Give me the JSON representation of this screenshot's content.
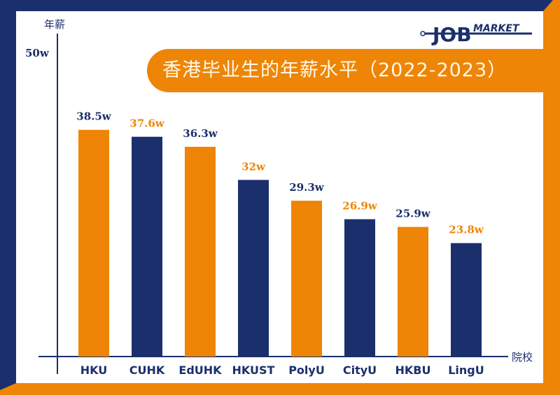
{
  "chart_data": {
    "type": "bar",
    "title": "香港毕业生的年薪水平（2022-2023）",
    "ylabel": "年薪",
    "xlabel": "院校",
    "y_tick_labels": [
      "50w"
    ],
    "categories": [
      "HKU",
      "CUHK",
      "EdUHK",
      "HKUST",
      "PolyU",
      "CityU",
      "HKBU",
      "LingU"
    ],
    "values": [
      38.5,
      37.6,
      36.3,
      32,
      29.3,
      26.9,
      25.9,
      23.8
    ],
    "data_labels": [
      "38.5w",
      "37.6w",
      "36.3w",
      "32w",
      "29.3w",
      "26.9w",
      "25.9w",
      "23.8w"
    ],
    "bar_colors": [
      "#ee8506",
      "#1b2f6c",
      "#ee8506",
      "#1b2f6c",
      "#ee8506",
      "#1b2f6c",
      "#ee8506",
      "#1b2f6c"
    ],
    "label_colors": [
      "#1b2f6c",
      "#ee8506",
      "#1b2f6c",
      "#ee8506",
      "#1b2f6c",
      "#ee8506",
      "#1b2f6c",
      "#ee8506"
    ],
    "unit": "w",
    "grid": false,
    "legend": "none"
  },
  "logo": {
    "text_job": "JOB",
    "text_market": "MARKET"
  },
  "colors": {
    "navy": "#1b2f6c",
    "orange": "#ee8506"
  }
}
